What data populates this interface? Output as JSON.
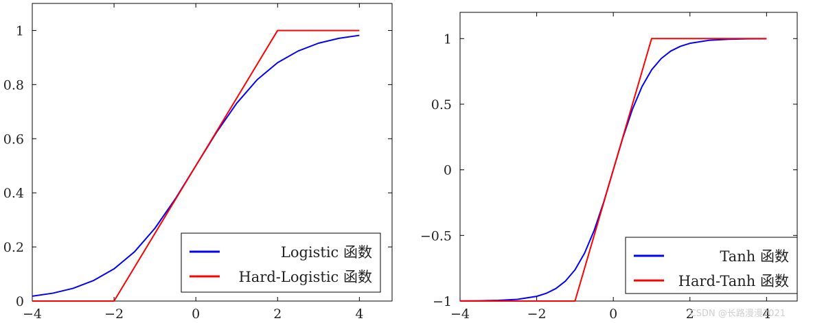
{
  "chart_data": [
    {
      "type": "line",
      "title": "",
      "xlabel": "",
      "ylabel": "",
      "xlim": [
        -4,
        4.8
      ],
      "ylim": [
        0,
        1.1
      ],
      "xticks": [
        -4,
        -2,
        0,
        2,
        4
      ],
      "xtick_labels": [
        "−4",
        "−2",
        "0",
        "2",
        "4"
      ],
      "yticks": [
        0,
        0.2,
        0.4,
        0.6,
        0.8,
        1
      ],
      "ytick_labels": [
        "0",
        "0.2",
        "0.4",
        "0.6",
        "0.8",
        "1"
      ],
      "grid": false,
      "legend_position": "bottom-right",
      "series": [
        {
          "name": "Logistic 函数",
          "color": "#0000ff",
          "x": [
            -4,
            -3.5,
            -3,
            -2.5,
            -2,
            -1.5,
            -1,
            -0.5,
            0,
            0.5,
            1,
            1.5,
            2,
            2.5,
            3,
            3.5,
            4
          ],
          "y": [
            0.018,
            0.029,
            0.047,
            0.076,
            0.119,
            0.182,
            0.269,
            0.378,
            0.5,
            0.622,
            0.731,
            0.818,
            0.881,
            0.924,
            0.953,
            0.971,
            0.982
          ]
        },
        {
          "name": "Hard-Logistic 函数",
          "color": "#ff0000",
          "x": [
            -4,
            -2,
            2,
            4
          ],
          "y": [
            0,
            0,
            1,
            1
          ]
        }
      ]
    },
    {
      "type": "line",
      "title": "",
      "xlabel": "",
      "ylabel": "",
      "xlim": [
        -4,
        4.8
      ],
      "ylim": [
        -1,
        1.2
      ],
      "xticks": [
        -4,
        -2,
        0,
        2,
        4
      ],
      "xtick_labels": [
        "−4",
        "−2",
        "0",
        "2",
        "4"
      ],
      "yticks": [
        -1,
        -0.5,
        0,
        0.5,
        1
      ],
      "ytick_labels": [
        "−1",
        "−0.5",
        "0",
        "0.5",
        "1"
      ],
      "grid": false,
      "legend_position": "bottom-right",
      "series": [
        {
          "name": "Tanh 函数",
          "color": "#0000ff",
          "x": [
            -4,
            -3.5,
            -3,
            -2.5,
            -2,
            -1.75,
            -1.5,
            -1.25,
            -1,
            -0.75,
            -0.5,
            -0.25,
            0,
            0.25,
            0.5,
            0.75,
            1,
            1.25,
            1.5,
            1.75,
            2,
            2.5,
            3,
            3.5,
            4
          ],
          "y": [
            -0.999,
            -0.998,
            -0.995,
            -0.987,
            -0.964,
            -0.941,
            -0.905,
            -0.848,
            -0.762,
            -0.635,
            -0.462,
            -0.245,
            0,
            0.245,
            0.462,
            0.635,
            0.762,
            0.848,
            0.905,
            0.941,
            0.964,
            0.987,
            0.995,
            0.998,
            0.999
          ]
        },
        {
          "name": "Hard-Tanh 函数",
          "color": "#ff0000",
          "x": [
            -4,
            -1,
            1,
            4
          ],
          "y": [
            -1,
            -1,
            1,
            1
          ]
        }
      ]
    }
  ],
  "watermark": "CSDN @长路漫漫2021"
}
